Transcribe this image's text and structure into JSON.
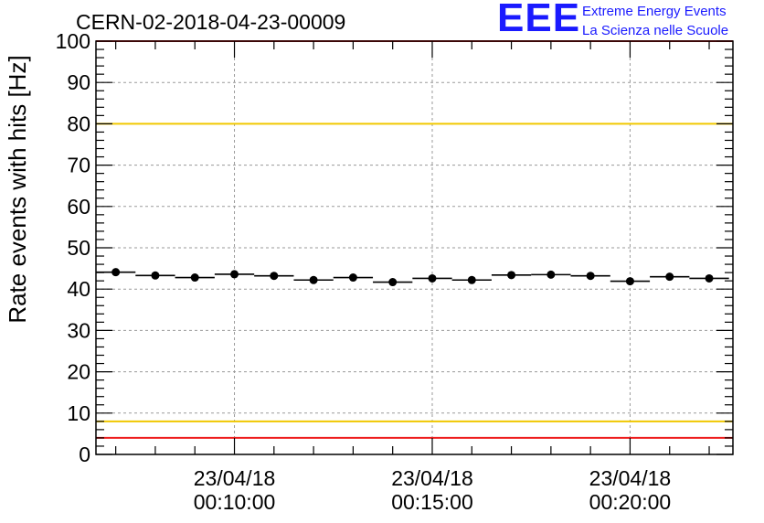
{
  "chart_data": {
    "type": "scatter",
    "title": "CERN-02-2018-04-23-00009",
    "ylabel": "Rate events with hits [Hz]",
    "xlabel": "",
    "ylim": [
      0,
      100
    ],
    "yticks": [
      0,
      10,
      20,
      30,
      40,
      50,
      60,
      70,
      80,
      90,
      100
    ],
    "xlim_minutes": [
      6.5,
      22.6
    ],
    "xticks": [
      {
        "minute": 10,
        "date": "23/04/18",
        "time": "00:10:00"
      },
      {
        "minute": 15,
        "date": "23/04/18",
        "time": "00:15:00"
      },
      {
        "minute": 20,
        "date": "23/04/18",
        "time": "00:20:00"
      }
    ],
    "x_minutes": [
      7,
      8,
      9,
      10,
      11,
      12,
      13,
      14,
      15,
      16,
      17,
      18,
      19,
      20,
      21,
      22
    ],
    "values": [
      44.1,
      43.3,
      42.8,
      43.6,
      43.2,
      42.2,
      42.8,
      41.7,
      42.6,
      42.2,
      43.4,
      43.5,
      43.2,
      41.9,
      43.0,
      42.6
    ],
    "bin_width_minutes": 1,
    "grid": true,
    "reference_lines": [
      {
        "value": 100,
        "color": "#ee1c1c"
      },
      {
        "value": 80,
        "color": "#f0c800"
      },
      {
        "value": 8,
        "color": "#f0c800"
      },
      {
        "value": 4,
        "color": "#ee1c1c"
      }
    ],
    "marker_color": "#000000"
  },
  "logo": {
    "mark": "EEE",
    "line1": "Extreme Energy Events",
    "line2": "La Scienza nelle Scuole"
  }
}
